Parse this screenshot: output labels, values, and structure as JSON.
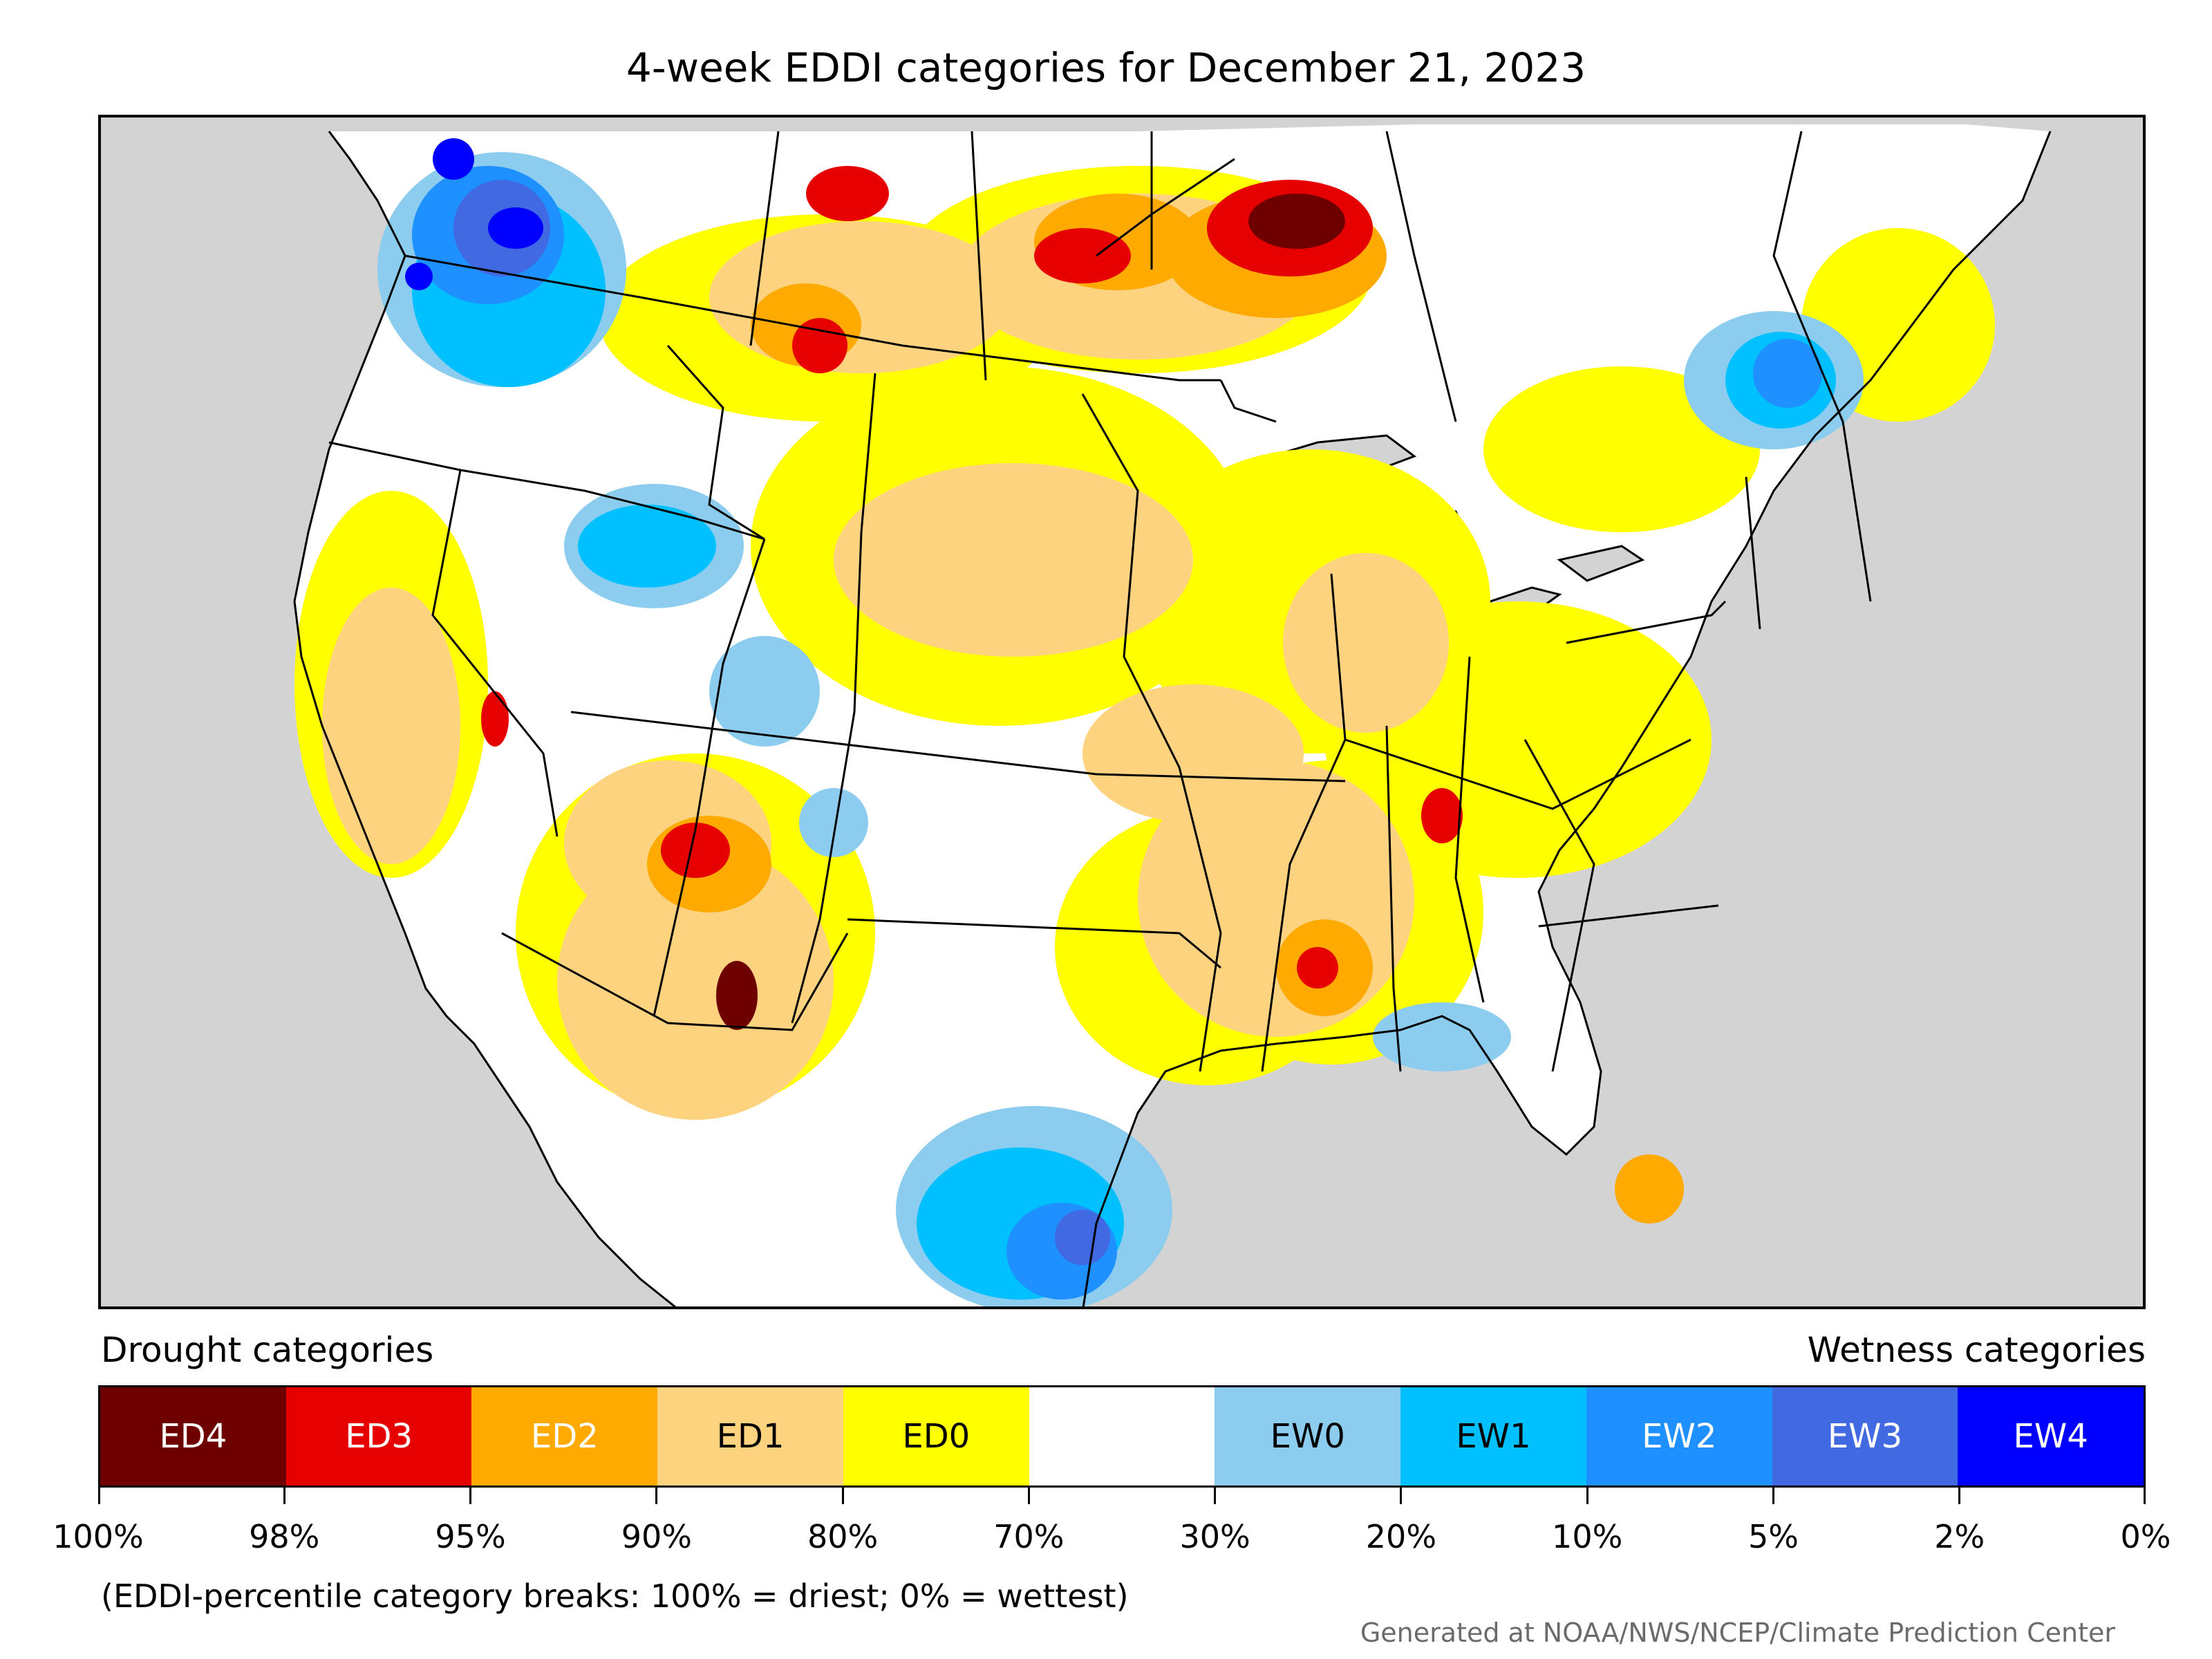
{
  "title": "4-week EDDI categories for December 21, 2023",
  "legend": {
    "drought_header": "Drought categories",
    "wetness_header": "Wetness categories",
    "categories": [
      {
        "label": "ED4",
        "color": "#6e0000",
        "text_color": "#ffffff"
      },
      {
        "label": "ED3",
        "color": "#e60000",
        "text_color": "#ffffff"
      },
      {
        "label": "ED2",
        "color": "#ffaa00",
        "text_color": "#ffffff"
      },
      {
        "label": "ED1",
        "color": "#fed380",
        "text_color": "#000000"
      },
      {
        "label": "ED0",
        "color": "#ffff00",
        "text_color": "#000000"
      },
      {
        "label": "",
        "color": "#ffffff",
        "text_color": "#000000"
      },
      {
        "label": "EW0",
        "color": "#8ccdef",
        "text_color": "#000000"
      },
      {
        "label": "EW1",
        "color": "#00c0ff",
        "text_color": "#000000"
      },
      {
        "label": "EW2",
        "color": "#1e90ff",
        "text_color": "#ffffff"
      },
      {
        "label": "EW3",
        "color": "#4169e1",
        "text_color": "#ffffff"
      },
      {
        "label": "EW4",
        "color": "#0000ff",
        "text_color": "#ffffff"
      }
    ],
    "tick_labels": [
      "100%",
      "98%",
      "95%",
      "90%",
      "80%",
      "70%",
      "30%",
      "20%",
      "10%",
      "5%",
      "2%",
      "0%"
    ]
  },
  "note": "(EDDI-percentile category breaks: 100% = driest; 0% = wettest)",
  "credit": "Generated at NOAA/NWS/NCEP/Climate Prediction Center",
  "colors": {
    "background": "#d3d3d3",
    "land_normal": "#ffffff",
    "water": "#d3d3d3",
    "borders": "#000000"
  }
}
